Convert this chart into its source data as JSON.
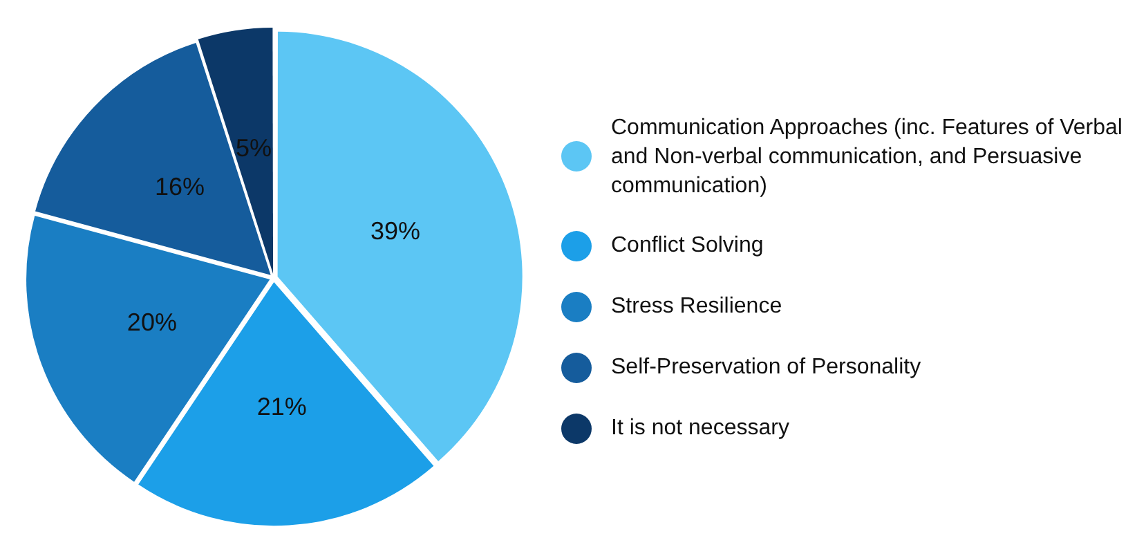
{
  "chart_data": {
    "type": "pie",
    "categories": [
      "Communication Approaches (inc. Features of Verbal and Non-verbal communication, and Persuasive communication)",
      "Conflict Solving",
      "Stress Resilience",
      "Self-Preservation of Personality",
      "It is not necessary"
    ],
    "values": [
      39,
      21,
      20,
      16,
      5
    ],
    "colors": [
      "#5cc6f4",
      "#1c9fe8",
      "#1a7ec3",
      "#155c9c",
      "#0c3868"
    ],
    "value_labels": [
      "39%",
      "21%",
      "20%",
      "16%",
      "5%"
    ],
    "legend": "right"
  }
}
